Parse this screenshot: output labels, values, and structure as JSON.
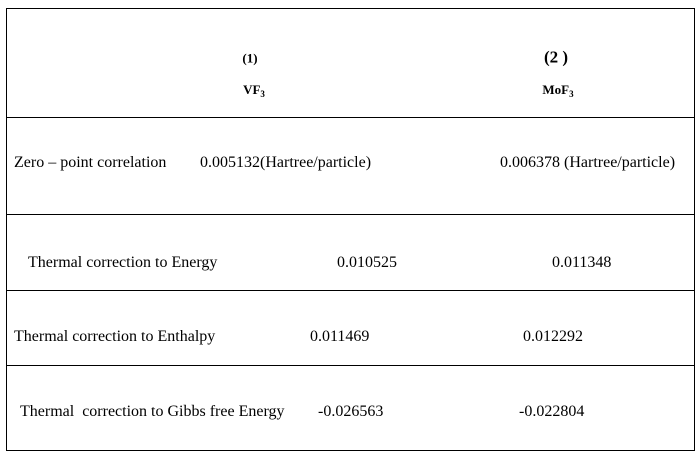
{
  "table": {
    "header": [
      {
        "number": "(1)",
        "compound": "VF",
        "subscript": "3"
      },
      {
        "number": "(2 )",
        "compound": "MoF",
        "subscript": "3"
      }
    ],
    "rows": [
      [
        "Zero – point correlation",
        "0.005132(Hartree/particle)",
        "0.006378 (Hartree/particle)"
      ],
      [
        "Thermal correction to Energy",
        "0.010525",
        "0.011348"
      ],
      [
        "Thermal correction to Enthalpy",
        "0.011469",
        "0.012292"
      ],
      [
        "Thermal  correction to Gibbs free Energy",
        "-0.026563",
        "-0.022804"
      ]
    ]
  }
}
